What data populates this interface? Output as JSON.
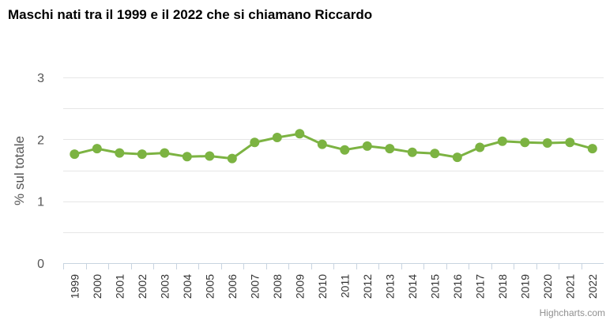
{
  "chart_data": {
    "type": "line",
    "title": "Maschi nati tra il 1999 e il 2022 che si chiamano Riccardo",
    "ylabel": "% sul totale",
    "xlabel": "",
    "categories": [
      "1999",
      "2000",
      "2001",
      "2002",
      "2003",
      "2004",
      "2005",
      "2006",
      "2007",
      "2008",
      "2009",
      "2010",
      "2011",
      "2012",
      "2013",
      "2014",
      "2015",
      "2016",
      "2017",
      "2018",
      "2019",
      "2020",
      "2021",
      "2022"
    ],
    "series": [
      {
        "values": [
          1.76,
          1.85,
          1.78,
          1.76,
          1.78,
          1.72,
          1.73,
          1.69,
          1.95,
          2.03,
          2.09,
          1.92,
          1.83,
          1.89,
          1.85,
          1.79,
          1.77,
          1.71,
          1.87,
          1.97,
          1.95,
          1.94,
          1.95,
          1.85
        ],
        "color": "#7cb342"
      }
    ],
    "ylim": [
      0,
      3
    ],
    "yticks": [
      "0",
      "1",
      "2",
      "3"
    ],
    "grid": true,
    "legend": "none",
    "credits": "Highcharts.com"
  }
}
